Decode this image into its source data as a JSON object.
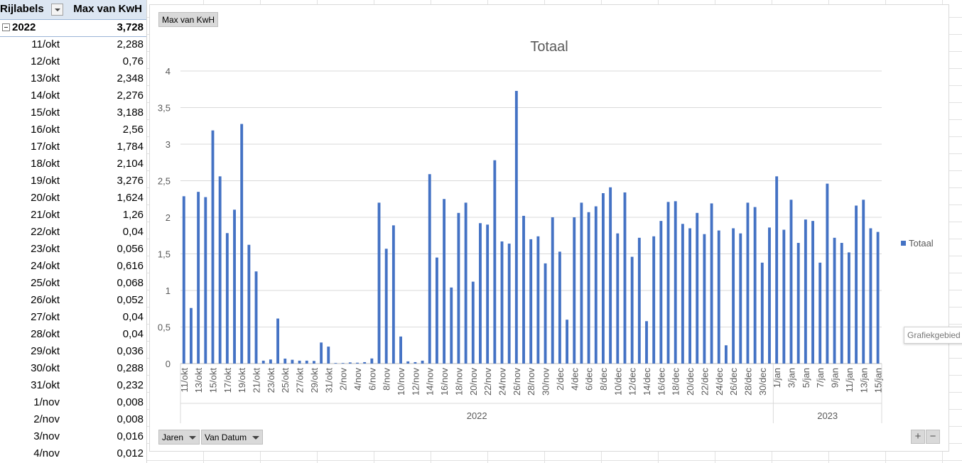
{
  "pivot": {
    "header_label": "Rijlabels",
    "header_value": "Max van KwH",
    "year_label": "2022",
    "year_value": "3,728",
    "rows": [
      {
        "label": "11/okt",
        "value": "2,288"
      },
      {
        "label": "12/okt",
        "value": "0,76"
      },
      {
        "label": "13/okt",
        "value": "2,348"
      },
      {
        "label": "14/okt",
        "value": "2,276"
      },
      {
        "label": "15/okt",
        "value": "3,188"
      },
      {
        "label": "16/okt",
        "value": "2,56"
      },
      {
        "label": "17/okt",
        "value": "1,784"
      },
      {
        "label": "18/okt",
        "value": "2,104"
      },
      {
        "label": "19/okt",
        "value": "3,276"
      },
      {
        "label": "20/okt",
        "value": "1,624"
      },
      {
        "label": "21/okt",
        "value": "1,26"
      },
      {
        "label": "22/okt",
        "value": "0,04"
      },
      {
        "label": "23/okt",
        "value": "0,056"
      },
      {
        "label": "24/okt",
        "value": "0,616"
      },
      {
        "label": "25/okt",
        "value": "0,068"
      },
      {
        "label": "26/okt",
        "value": "0,052"
      },
      {
        "label": "27/okt",
        "value": "0,04"
      },
      {
        "label": "28/okt",
        "value": "0,04"
      },
      {
        "label": "29/okt",
        "value": "0,036"
      },
      {
        "label": "30/okt",
        "value": "0,288"
      },
      {
        "label": "31/okt",
        "value": "0,232"
      },
      {
        "label": "1/nov",
        "value": "0,008"
      },
      {
        "label": "2/nov",
        "value": "0,008"
      },
      {
        "label": "3/nov",
        "value": "0,016"
      },
      {
        "label": "4/nov",
        "value": "0,012"
      }
    ]
  },
  "chart_ui": {
    "value_field_button": "Max van KwH",
    "axis_field_years": "Jaren",
    "axis_field_date": "Van Datum",
    "zoom_plus": "+",
    "zoom_minus": "−",
    "tooltip": "Grafiekgebied"
  },
  "colors": {
    "bar": "#4472c4",
    "grid": "#d9d9d9",
    "text": "#595959"
  },
  "chart_data": {
    "type": "bar",
    "title": "Totaal",
    "ylim": [
      0,
      4
    ],
    "yticks": [
      "0",
      "0,5",
      "1",
      "1,5",
      "2",
      "2,5",
      "3",
      "3,5",
      "4"
    ],
    "grid": true,
    "legend_position": "right",
    "series": [
      {
        "name": "Totaal",
        "values": [
          2.288,
          0.76,
          2.348,
          2.276,
          3.188,
          2.56,
          1.784,
          2.104,
          3.276,
          1.624,
          1.26,
          0.04,
          0.056,
          0.616,
          0.068,
          0.052,
          0.04,
          0.04,
          0.036,
          0.288,
          0.232,
          0.008,
          0.008,
          0.016,
          0.012,
          0.02,
          0.07,
          2.2,
          1.57,
          1.89,
          0.37,
          0.03,
          0.02,
          0.04,
          2.59,
          1.45,
          2.25,
          1.04,
          2.06,
          2.2,
          1.12,
          1.92,
          1.9,
          2.78,
          1.67,
          1.64,
          3.728,
          2.02,
          1.7,
          1.74,
          1.37,
          2.0,
          1.53,
          0.6,
          2.0,
          2.2,
          2.07,
          2.15,
          2.33,
          2.41,
          1.78,
          2.34,
          1.46,
          1.72,
          0.58,
          1.74,
          1.95,
          2.21,
          2.22,
          1.91,
          1.85,
          2.06,
          1.77,
          2.19,
          1.82,
          0.25,
          1.85,
          1.78,
          2.2,
          2.14,
          1.38,
          1.86,
          2.56,
          1.83,
          2.24,
          1.65,
          1.97,
          1.95,
          1.38,
          2.46,
          1.72,
          1.65,
          1.52,
          2.16,
          2.24,
          1.85,
          1.8
        ]
      }
    ],
    "categories": [
      "11/okt",
      "12/okt",
      "13/okt",
      "14/okt",
      "15/okt",
      "16/okt",
      "17/okt",
      "18/okt",
      "19/okt",
      "20/okt",
      "21/okt",
      "22/okt",
      "23/okt",
      "24/okt",
      "25/okt",
      "26/okt",
      "27/okt",
      "28/okt",
      "29/okt",
      "30/okt",
      "31/okt",
      "1/nov",
      "2/nov",
      "3/nov",
      "4/nov",
      "5/nov",
      "6/nov",
      "7/nov",
      "8/nov",
      "9/nov",
      "10/nov",
      "11/nov",
      "12/nov",
      "13/nov",
      "14/nov",
      "15/nov",
      "16/nov",
      "17/nov",
      "18/nov",
      "19/nov",
      "20/nov",
      "21/nov",
      "22/nov",
      "23/nov",
      "24/nov",
      "25/nov",
      "26/nov",
      "27/nov",
      "28/nov",
      "29/nov",
      "30/nov",
      "1/dec",
      "2/dec",
      "3/dec",
      "4/dec",
      "5/dec",
      "6/dec",
      "7/dec",
      "8/dec",
      "9/dec",
      "10/dec",
      "11/dec",
      "12/dec",
      "13/dec",
      "14/dec",
      "15/dec",
      "16/dec",
      "17/dec",
      "18/dec",
      "19/dec",
      "20/dec",
      "21/dec",
      "22/dec",
      "23/dec",
      "24/dec",
      "25/dec",
      "26/dec",
      "27/dec",
      "28/dec",
      "29/dec",
      "30/dec",
      "31/dec",
      "1/jan",
      "2/jan",
      "3/jan",
      "4/jan",
      "5/jan",
      "6/jan",
      "7/jan",
      "8/jan",
      "9/jan",
      "10/jan",
      "11/jan",
      "12/jan",
      "13/jan",
      "14/jan",
      "15/jan"
    ],
    "shown_tick_labels": [
      "11/okt",
      "13/okt",
      "15/okt",
      "17/okt",
      "19/okt",
      "21/okt",
      "23/okt",
      "25/okt",
      "27/okt",
      "29/okt",
      "31/okt",
      "2/nov",
      "4/nov",
      "6/nov",
      "8/nov",
      "10/nov",
      "12/nov",
      "14/nov",
      "16/nov",
      "18/nov",
      "20/nov",
      "22/nov",
      "24/nov",
      "26/nov",
      "28/nov",
      "30/nov",
      "2/dec",
      "4/dec",
      "6/dec",
      "8/dec",
      "10/dec",
      "12/dec",
      "14/dec",
      "16/dec",
      "18/dec",
      "20/dec",
      "22/dec",
      "24/dec",
      "26/dec",
      "28/dec",
      "30/dec",
      "1/jan",
      "3/jan",
      "5/jan",
      "7/jan",
      "9/jan",
      "11/jan",
      "13/jan",
      "15/jan"
    ],
    "year_groups": [
      {
        "label": "2022",
        "start": "11/okt",
        "end": "31/dec"
      },
      {
        "label": "2023",
        "start": "1/jan",
        "end": "15/jan"
      }
    ]
  }
}
